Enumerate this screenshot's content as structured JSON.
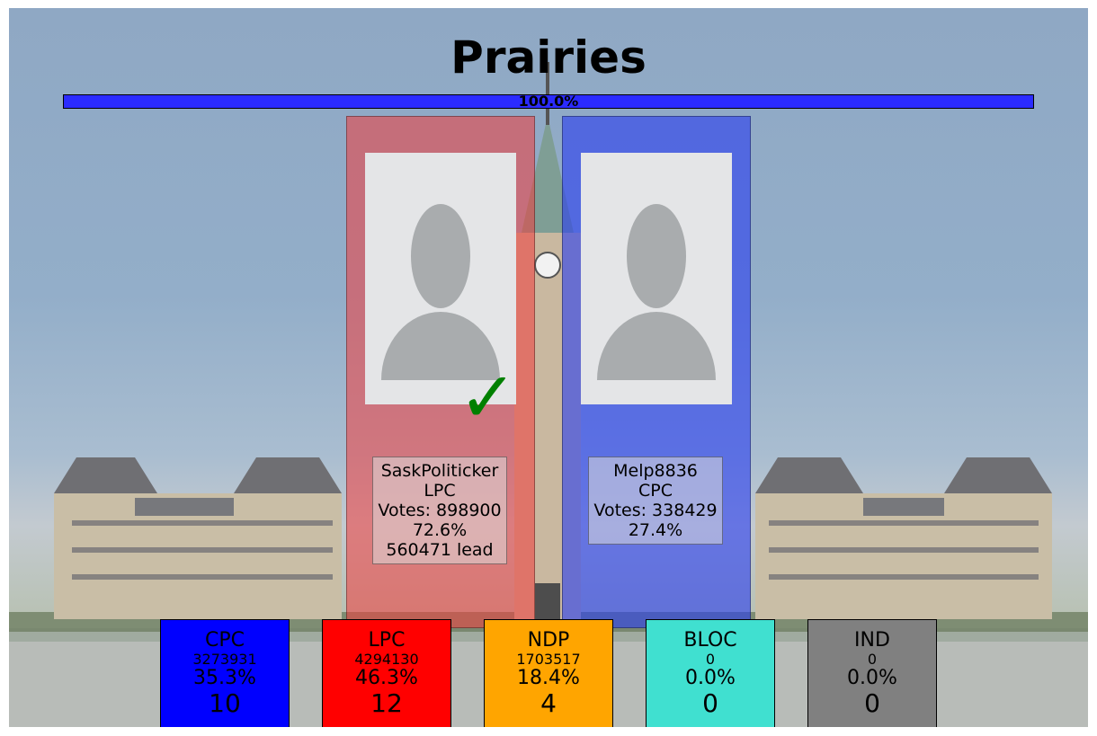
{
  "title": "Prairies",
  "progress": {
    "value_pct": 100.0,
    "label": "100.0%",
    "color": "#2b2bff"
  },
  "candidates": [
    {
      "name": "SaskPoliticker",
      "party": "LPC",
      "votes_text": "Votes: 898900",
      "pct_text": "72.6%",
      "lead_text": "560471 lead",
      "panel_color": "rgba(240,60,60,0.55)",
      "winner": true
    },
    {
      "name": "Melp8836",
      "party": "CPC",
      "votes_text": "Votes: 338429",
      "pct_text": "27.4%",
      "lead_text": "",
      "panel_color": "rgba(40,60,240,0.6)",
      "winner": false
    }
  ],
  "winner_mark": "✓",
  "parties": [
    {
      "name": "CPC",
      "votes": "3273931",
      "pct": "35.3%",
      "seats": "10",
      "color": "#0000ff"
    },
    {
      "name": "LPC",
      "votes": "4294130",
      "pct": "46.3%",
      "seats": "12",
      "color": "#ff0000"
    },
    {
      "name": "NDP",
      "votes": "1703517",
      "pct": "18.4%",
      "seats": "4",
      "color": "#ffa500"
    },
    {
      "name": "BLOC",
      "votes": "0",
      "pct": "0.0%",
      "seats": "0",
      "color": "#40e0d0"
    },
    {
      "name": "IND",
      "votes": "0",
      "pct": "0.0%",
      "seats": "0",
      "color": "#808080"
    }
  ]
}
